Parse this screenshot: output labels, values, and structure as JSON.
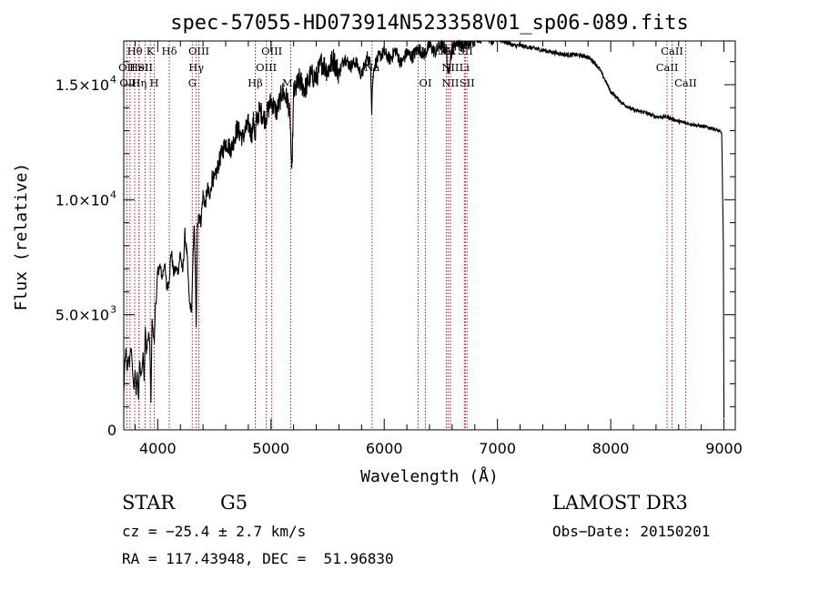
{
  "chart_data": {
    "type": "line",
    "title": "spec-57055-HD073914N523358V01_sp06-089.fits",
    "xlabel": "Wavelength (Å)",
    "ylabel": "Flux (relative)",
    "xlim": [
      3700,
      9100
    ],
    "ylim": [
      0,
      16900
    ],
    "x_ticks": [
      {
        "value": 4000,
        "label": "4000"
      },
      {
        "value": 5000,
        "label": "5000"
      },
      {
        "value": 6000,
        "label": "6000"
      },
      {
        "value": 7000,
        "label": "7000"
      },
      {
        "value": 8000,
        "label": "8000"
      },
      {
        "value": 9000,
        "label": "9000"
      }
    ],
    "y_ticks": [
      {
        "value": 0,
        "base": "0",
        "exp": ""
      },
      {
        "value": 5000,
        "base": "5.0×10",
        "exp": "3"
      },
      {
        "value": 10000,
        "base": "1.0×10",
        "exp": "4"
      },
      {
        "value": 15000,
        "base": "1.5×10",
        "exp": "4"
      }
    ],
    "series": [
      {
        "name": "flux",
        "x": [
          3700,
          3710,
          3720,
          3730,
          3740,
          3750,
          3760,
          3770,
          3780,
          3790,
          3800,
          3810,
          3820,
          3830,
          3840,
          3850,
          3860,
          3870,
          3880,
          3890,
          3900,
          3910,
          3920,
          3930,
          3940,
          3950,
          3960,
          3970,
          3980,
          3990,
          4000,
          4020,
          4040,
          4060,
          4080,
          4100,
          4120,
          4140,
          4160,
          4180,
          4200,
          4220,
          4240,
          4260,
          4280,
          4300,
          4320,
          4330,
          4340,
          4350,
          4360,
          4380,
          4400,
          4420,
          4440,
          4460,
          4480,
          4500,
          4550,
          4600,
          4650,
          4700,
          4750,
          4800,
          4830,
          4850,
          4861,
          4870,
          4900,
          4950,
          5000,
          5050,
          5100,
          5150,
          5170,
          5183,
          5200,
          5250,
          5300,
          5350,
          5400,
          5450,
          5500,
          5550,
          5600,
          5650,
          5700,
          5750,
          5800,
          5850,
          5880,
          5890,
          5896,
          5910,
          5950,
          6000,
          6050,
          6100,
          6150,
          6200,
          6250,
          6300,
          6350,
          6400,
          6450,
          6500,
          6550,
          6563,
          6600,
          6650,
          6700,
          6750,
          6800,
          6850,
          6900,
          6950,
          7000,
          7050,
          7100,
          7150,
          7200,
          7300,
          7400,
          7500,
          7600,
          7700,
          7800,
          7850,
          7900,
          8000,
          8100,
          8200,
          8300,
          8400,
          8500,
          8600,
          8700,
          8800,
          8900,
          8950,
          8980,
          8995,
          9000
        ],
        "y": [
          1600,
          3000,
          3500,
          2500,
          3200,
          2800,
          3600,
          3300,
          2400,
          1700,
          2600,
          1500,
          2500,
          1300,
          3000,
          2400,
          2600,
          3300,
          2100,
          4500,
          3300,
          3800,
          4200,
          3700,
          1200,
          4800,
          4200,
          3800,
          5500,
          5800,
          6900,
          7100,
          6600,
          7300,
          6100,
          6500,
          7800,
          6800,
          7000,
          6900,
          7700,
          6800,
          8500,
          7500,
          5500,
          5200,
          9000,
          7500,
          4400,
          8800,
          9500,
          9000,
          10200,
          9800,
          10500,
          10000,
          11000,
          10800,
          11800,
          12500,
          12200,
          13100,
          12700,
          13300,
          12800,
          13600,
          12400,
          13400,
          13900,
          13500,
          14300,
          13800,
          14700,
          14300,
          13400,
          11000,
          14600,
          15200,
          14800,
          15400,
          15300,
          16000,
          15600,
          16100,
          15500,
          16200,
          15800,
          16000,
          15400,
          16200,
          15900,
          13900,
          15000,
          15800,
          16200,
          16400,
          16100,
          16500,
          15900,
          16400,
          16200,
          16600,
          16300,
          16700,
          16400,
          16800,
          16500,
          15400,
          16600,
          16900,
          16700,
          16800,
          17000,
          16900,
          17100,
          16800,
          17000,
          16900,
          16800,
          16700,
          16700,
          16600,
          16500,
          16400,
          16300,
          16300,
          16200,
          16000,
          15700,
          14700,
          14200,
          13900,
          13800,
          13600,
          13600,
          13400,
          13300,
          13200,
          13100,
          13000,
          12900,
          8000,
          500
        ]
      }
    ],
    "emission_lines": [
      {
        "label": "Hθ",
        "x": 3797,
        "row": 0
      },
      {
        "label": "OII",
        "x": 3727,
        "row": 1
      },
      {
        "label": "OIII",
        "x": 3755,
        "row": 2
      },
      {
        "label": "K",
        "x": 3934,
        "row": 0
      },
      {
        "label": "HeI",
        "x": 3835,
        "row": 1
      },
      {
        "label": "SII",
        "x": 3889,
        "row": 1
      },
      {
        "label": "Hη",
        "x": 3835,
        "row": 2
      },
      {
        "label": "H",
        "x": 3969,
        "row": 2
      },
      {
        "label": "Hδ",
        "x": 4102,
        "row": 0
      },
      {
        "label": "OIII",
        "x": 4363,
        "row": 0
      },
      {
        "label": "Hγ",
        "x": 4340,
        "row": 1
      },
      {
        "label": "G",
        "x": 4305,
        "row": 2
      },
      {
        "label": "OIII",
        "x": 5007,
        "row": 0
      },
      {
        "label": "OIII",
        "x": 4959,
        "row": 1
      },
      {
        "label": "Hβ",
        "x": 4861,
        "row": 2
      },
      {
        "label": "Mg",
        "x": 5175,
        "row": 2
      },
      {
        "label": "Na",
        "x": 5892,
        "row": 1
      },
      {
        "label": "OI",
        "x": 6300,
        "row": 0
      },
      {
        "label": "OI",
        "x": 6364,
        "row": 2
      },
      {
        "label": "NII",
        "x": 6548,
        "row": 0
      },
      {
        "label": "Hα",
        "x": 6563,
        "row": 0
      },
      {
        "label": "SII",
        "x": 6716,
        "row": 0
      },
      {
        "label": "NII",
        "x": 6584,
        "row": 1
      },
      {
        "label": "Li",
        "x": 6708,
        "row": 1
      },
      {
        "label": "NII",
        "x": 6584,
        "row": 2
      },
      {
        "label": "SII",
        "x": 6731,
        "row": 2
      },
      {
        "label": "CaII",
        "x": 8542,
        "row": 0
      },
      {
        "label": "CaII",
        "x": 8498,
        "row": 1
      },
      {
        "label": "CaII",
        "x": 8662,
        "row": 2
      }
    ],
    "line_color": "#c0000c",
    "spectrum_color": "#000000"
  },
  "footer": {
    "object_class": "STAR",
    "subclass": "G5",
    "survey": "LAMOST DR3",
    "cz": "cz = −25.4 ± 2.7 km/s",
    "obs_date": "Obs−Date: 20150201",
    "coords": "RA = 117.43948, DEC =  51.96830"
  }
}
